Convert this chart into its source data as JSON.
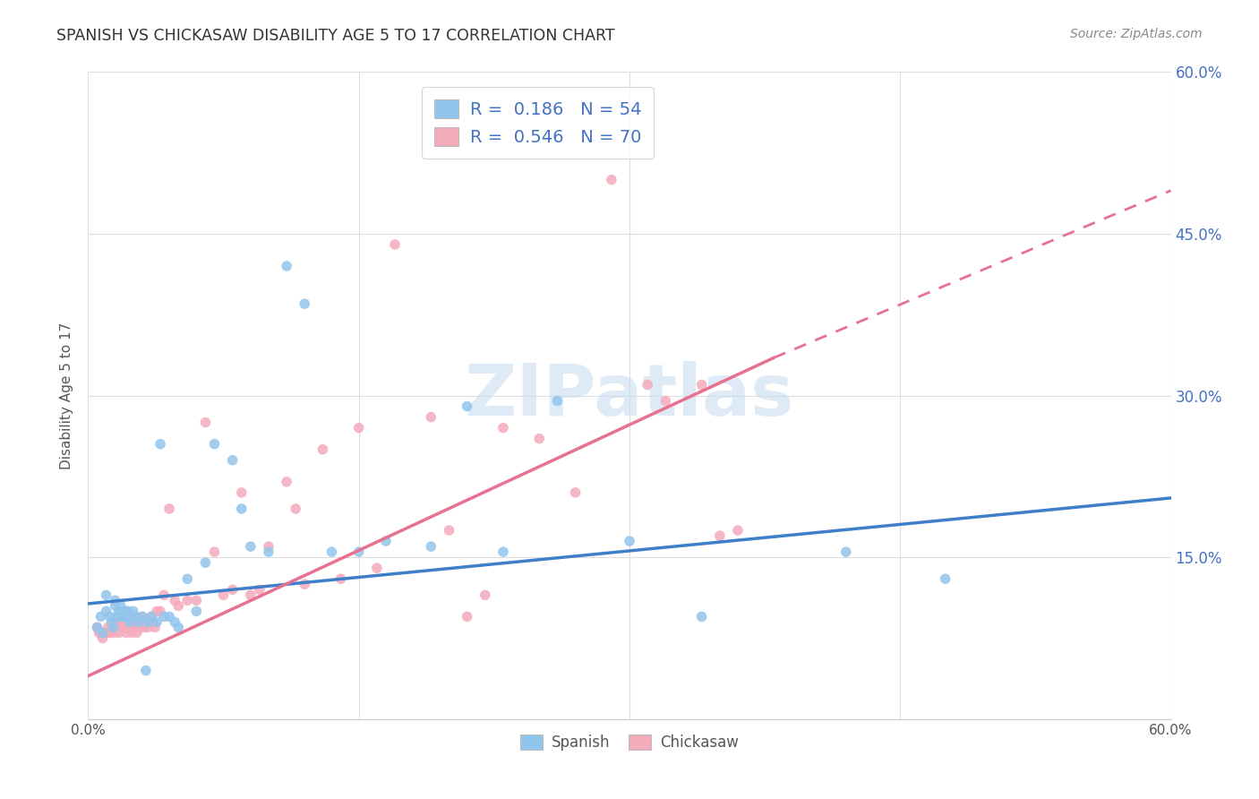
{
  "title": "SPANISH VS CHICKASAW DISABILITY AGE 5 TO 17 CORRELATION CHART",
  "source": "Source: ZipAtlas.com",
  "ylabel": "Disability Age 5 to 17",
  "xlim": [
    0.0,
    0.6
  ],
  "ylim": [
    0.0,
    0.6
  ],
  "grid_ticks": [
    0.0,
    0.15,
    0.3,
    0.45,
    0.6
  ],
  "right_ytick_labels": [
    "15.0%",
    "30.0%",
    "45.0%",
    "60.0%"
  ],
  "right_ytick_values": [
    0.15,
    0.3,
    0.45,
    0.6
  ],
  "spanish_R": "0.186",
  "spanish_N": "54",
  "chickasaw_R": "0.546",
  "chickasaw_N": "70",
  "spanish_color": "#92C5EC",
  "chickasaw_color": "#F4ABBB",
  "spanish_line_color": "#3F7EC8",
  "chickasaw_line_color": "#E87090",
  "watermark_color": "#C8DCF0",
  "spanish_line_x0": 0.0,
  "spanish_line_y0": 0.107,
  "spanish_line_x1": 0.6,
  "spanish_line_y1": 0.205,
  "chickasaw_line_solid_x0": 0.0,
  "chickasaw_line_solid_y0": 0.04,
  "chickasaw_line_solid_x1": 0.38,
  "chickasaw_line_solid_y1": 0.335,
  "chickasaw_line_dash_x0": 0.38,
  "chickasaw_line_dash_y0": 0.335,
  "chickasaw_line_dash_x1": 0.6,
  "chickasaw_line_dash_y1": 0.49,
  "spanish_x": [
    0.005,
    0.007,
    0.008,
    0.01,
    0.01,
    0.012,
    0.013,
    0.014,
    0.015,
    0.015,
    0.016,
    0.017,
    0.018,
    0.018,
    0.019,
    0.02,
    0.021,
    0.022,
    0.022,
    0.023,
    0.025,
    0.026,
    0.028,
    0.03,
    0.032,
    0.033,
    0.035,
    0.038,
    0.04,
    0.042,
    0.045,
    0.048,
    0.05,
    0.055,
    0.06,
    0.065,
    0.07,
    0.08,
    0.085,
    0.09,
    0.1,
    0.11,
    0.12,
    0.135,
    0.15,
    0.165,
    0.19,
    0.21,
    0.23,
    0.26,
    0.3,
    0.34,
    0.42,
    0.475
  ],
  "spanish_y": [
    0.085,
    0.095,
    0.08,
    0.1,
    0.115,
    0.095,
    0.09,
    0.085,
    0.105,
    0.11,
    0.095,
    0.1,
    0.095,
    0.105,
    0.095,
    0.095,
    0.1,
    0.095,
    0.1,
    0.09,
    0.1,
    0.095,
    0.09,
    0.095,
    0.045,
    0.09,
    0.095,
    0.09,
    0.255,
    0.095,
    0.095,
    0.09,
    0.085,
    0.13,
    0.1,
    0.145,
    0.255,
    0.24,
    0.195,
    0.16,
    0.155,
    0.42,
    0.385,
    0.155,
    0.155,
    0.165,
    0.16,
    0.29,
    0.155,
    0.295,
    0.165,
    0.095,
    0.155,
    0.13
  ],
  "chickasaw_x": [
    0.005,
    0.006,
    0.007,
    0.008,
    0.009,
    0.01,
    0.011,
    0.012,
    0.013,
    0.014,
    0.015,
    0.016,
    0.017,
    0.018,
    0.019,
    0.02,
    0.021,
    0.022,
    0.023,
    0.024,
    0.025,
    0.026,
    0.027,
    0.028,
    0.029,
    0.03,
    0.031,
    0.032,
    0.033,
    0.034,
    0.035,
    0.036,
    0.037,
    0.038,
    0.04,
    0.042,
    0.045,
    0.048,
    0.05,
    0.055,
    0.06,
    0.065,
    0.07,
    0.075,
    0.08,
    0.085,
    0.09,
    0.095,
    0.1,
    0.11,
    0.115,
    0.12,
    0.13,
    0.14,
    0.15,
    0.16,
    0.17,
    0.19,
    0.2,
    0.21,
    0.22,
    0.23,
    0.25,
    0.27,
    0.29,
    0.31,
    0.32,
    0.34,
    0.35,
    0.36
  ],
  "chickasaw_y": [
    0.085,
    0.08,
    0.08,
    0.075,
    0.08,
    0.08,
    0.085,
    0.08,
    0.085,
    0.08,
    0.085,
    0.09,
    0.08,
    0.09,
    0.085,
    0.09,
    0.08,
    0.085,
    0.085,
    0.08,
    0.09,
    0.085,
    0.08,
    0.085,
    0.09,
    0.095,
    0.085,
    0.09,
    0.085,
    0.09,
    0.095,
    0.09,
    0.085,
    0.1,
    0.1,
    0.115,
    0.195,
    0.11,
    0.105,
    0.11,
    0.11,
    0.275,
    0.155,
    0.115,
    0.12,
    0.21,
    0.115,
    0.12,
    0.16,
    0.22,
    0.195,
    0.125,
    0.25,
    0.13,
    0.27,
    0.14,
    0.44,
    0.28,
    0.175,
    0.095,
    0.115,
    0.27,
    0.26,
    0.21,
    0.5,
    0.31,
    0.295,
    0.31,
    0.17,
    0.175
  ]
}
